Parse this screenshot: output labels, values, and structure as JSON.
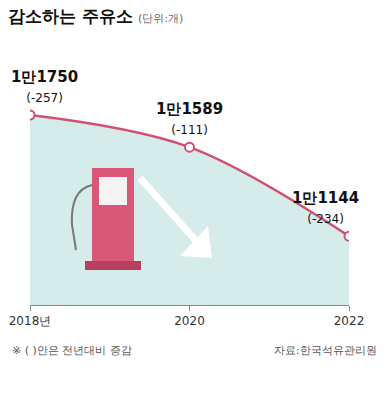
{
  "chart_data": {
    "type": "line",
    "title": "감소하는 주유소",
    "subtitle": "(단위:개)",
    "x": [
      2018,
      2020,
      2022
    ],
    "values": [
      11750,
      11589,
      11144
    ],
    "value_labels": [
      "1만1750",
      "1만1589",
      "1만1144"
    ],
    "changes": [
      -257,
      -111,
      -234
    ],
    "change_labels": [
      "(-257)",
      "(-111)",
      "(-234)"
    ],
    "note": "※ ( )안은 전년대비 증감",
    "source": "자료:한국석유관리원",
    "color": "#d14f72",
    "marker": "circle",
    "line_style": "solid",
    "xlim": [
      2018,
      2022
    ],
    "xticks": [
      {
        "value": 2018,
        "label": "2018년"
      },
      2020,
      2022
    ],
    "ylim": [
      10800,
      12100
    ],
    "grid": false,
    "data_labels": true,
    "tick_labels": "x"
  }
}
